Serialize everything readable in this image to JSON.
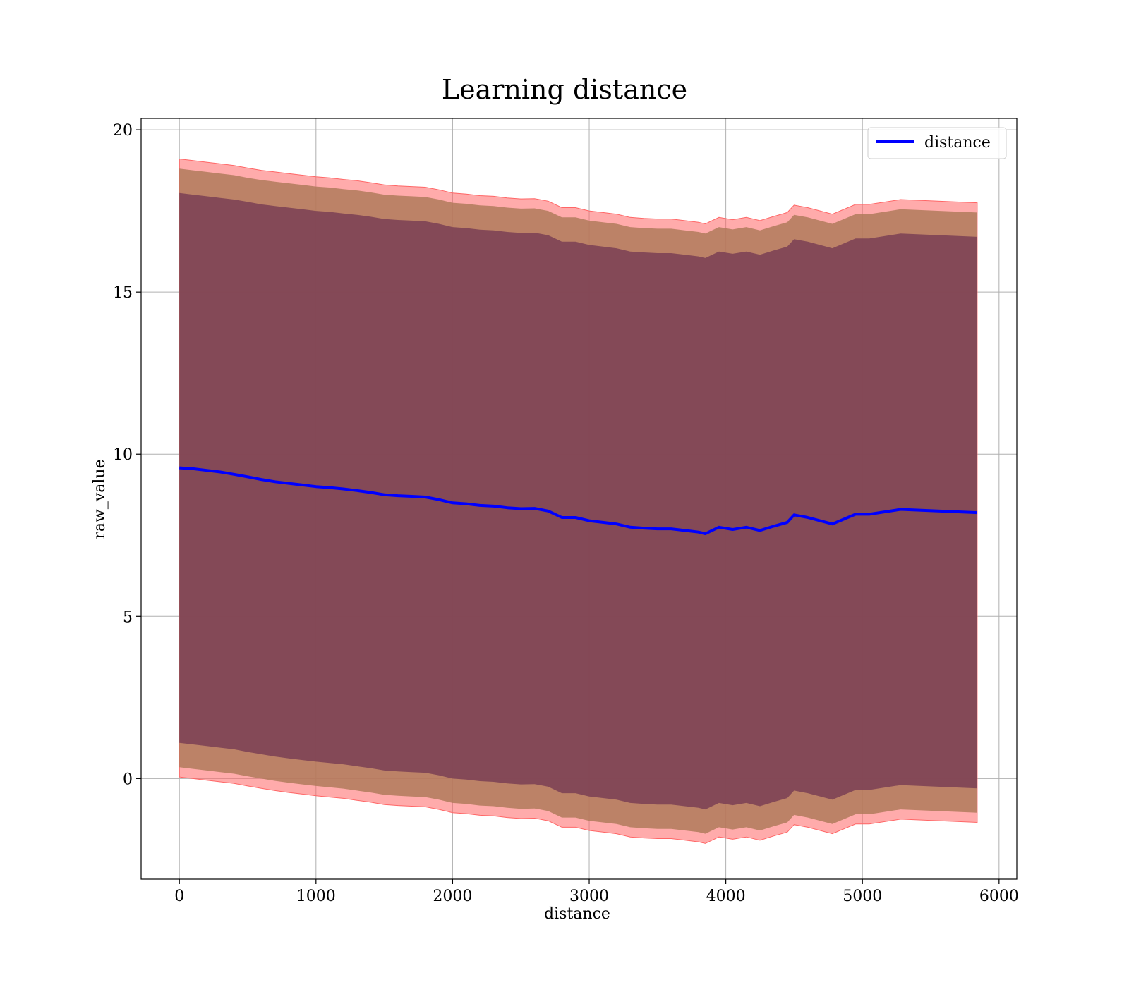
{
  "chart_data": {
    "type": "line",
    "title": "Learning distance",
    "xlabel": "distance",
    "ylabel": "raw_value",
    "xlim": [
      -280,
      6130
    ],
    "ylim": [
      -3.1,
      20.35
    ],
    "xticks": [
      0,
      1000,
      2000,
      3000,
      4000,
      5000,
      6000
    ],
    "yticks": [
      0,
      5,
      10,
      15,
      20
    ],
    "grid": true,
    "legend_position": "top-right",
    "colors": {
      "line": "#0000ff",
      "band_outer": "#ff6666",
      "band_middle": "#b07a5a",
      "band_inner": "#7a3f55",
      "grid": "#b0b0b0"
    },
    "series": [
      {
        "name": "distance",
        "x": [
          0,
          100,
          200,
          300,
          400,
          500,
          600,
          700,
          800,
          900,
          1000,
          1100,
          1200,
          1300,
          1400,
          1500,
          1600,
          1700,
          1800,
          1900,
          2000,
          2100,
          2200,
          2300,
          2400,
          2500,
          2600,
          2700,
          2800,
          2900,
          3000,
          3100,
          3200,
          3300,
          3400,
          3500,
          3600,
          3700,
          3800,
          3850,
          3950,
          4050,
          4150,
          4250,
          4350,
          4450,
          4500,
          4600,
          4780,
          4950,
          5050,
          5280,
          5840
        ],
        "y": [
          9.58,
          9.55,
          9.5,
          9.45,
          9.38,
          9.3,
          9.22,
          9.15,
          9.1,
          9.05,
          9.0,
          8.97,
          8.93,
          8.88,
          8.82,
          8.75,
          8.72,
          8.7,
          8.68,
          8.6,
          8.5,
          8.47,
          8.42,
          8.4,
          8.35,
          8.32,
          8.33,
          8.25,
          8.05,
          8.05,
          7.95,
          7.9,
          7.85,
          7.75,
          7.72,
          7.7,
          7.7,
          7.65,
          7.6,
          7.55,
          7.75,
          7.68,
          7.75,
          7.65,
          7.78,
          7.9,
          8.13,
          8.05,
          7.85,
          8.15,
          8.15,
          8.3,
          8.2
        ],
        "upper_inner": [
          18.05,
          18.0,
          17.95,
          17.9,
          17.85,
          17.78,
          17.7,
          17.65,
          17.6,
          17.55,
          17.5,
          17.47,
          17.42,
          17.38,
          17.32,
          17.25,
          17.22,
          17.2,
          17.18,
          17.1,
          17.0,
          16.97,
          16.92,
          16.9,
          16.85,
          16.82,
          16.83,
          16.75,
          16.55,
          16.55,
          16.45,
          16.4,
          16.35,
          16.25,
          16.22,
          16.2,
          16.2,
          16.15,
          16.1,
          16.05,
          16.25,
          16.18,
          16.25,
          16.15,
          16.28,
          16.4,
          16.63,
          16.55,
          16.35,
          16.65,
          16.65,
          16.8,
          16.7
        ],
        "lower_inner": [
          1.1,
          1.05,
          1.0,
          0.95,
          0.9,
          0.82,
          0.75,
          0.68,
          0.62,
          0.57,
          0.52,
          0.48,
          0.44,
          0.38,
          0.32,
          0.25,
          0.22,
          0.2,
          0.18,
          0.1,
          0.0,
          -0.03,
          -0.08,
          -0.1,
          -0.15,
          -0.18,
          -0.17,
          -0.25,
          -0.45,
          -0.45,
          -0.55,
          -0.6,
          -0.65,
          -0.75,
          -0.78,
          -0.8,
          -0.8,
          -0.85,
          -0.9,
          -0.95,
          -0.75,
          -0.82,
          -0.75,
          -0.85,
          -0.72,
          -0.6,
          -0.37,
          -0.45,
          -0.65,
          -0.35,
          -0.35,
          -0.2,
          -0.3
        ],
        "upper_middle": [
          18.8,
          18.75,
          18.7,
          18.65,
          18.6,
          18.52,
          18.45,
          18.4,
          18.35,
          18.3,
          18.25,
          18.22,
          18.17,
          18.13,
          18.07,
          18.0,
          17.97,
          17.95,
          17.93,
          17.85,
          17.75,
          17.72,
          17.67,
          17.65,
          17.6,
          17.57,
          17.58,
          17.5,
          17.3,
          17.3,
          17.2,
          17.15,
          17.1,
          17.0,
          16.97,
          16.95,
          16.95,
          16.9,
          16.85,
          16.8,
          17.0,
          16.93,
          17.0,
          16.9,
          17.03,
          17.15,
          17.38,
          17.3,
          17.1,
          17.4,
          17.4,
          17.55,
          17.45
        ],
        "lower_middle": [
          0.35,
          0.3,
          0.25,
          0.2,
          0.15,
          0.07,
          0.0,
          -0.07,
          -0.13,
          -0.18,
          -0.23,
          -0.27,
          -0.31,
          -0.37,
          -0.43,
          -0.5,
          -0.53,
          -0.55,
          -0.57,
          -0.65,
          -0.75,
          -0.78,
          -0.83,
          -0.85,
          -0.9,
          -0.93,
          -0.92,
          -1.0,
          -1.2,
          -1.2,
          -1.3,
          -1.35,
          -1.4,
          -1.5,
          -1.53,
          -1.55,
          -1.55,
          -1.6,
          -1.65,
          -1.7,
          -1.5,
          -1.57,
          -1.5,
          -1.6,
          -1.47,
          -1.35,
          -1.12,
          -1.2,
          -1.4,
          -1.1,
          -1.1,
          -0.95,
          -1.05
        ],
        "upper_outer": [
          19.1,
          19.05,
          19.0,
          18.95,
          18.9,
          18.82,
          18.75,
          18.7,
          18.65,
          18.6,
          18.55,
          18.52,
          18.47,
          18.43,
          18.37,
          18.3,
          18.27,
          18.25,
          18.23,
          18.15,
          18.05,
          18.02,
          17.97,
          17.95,
          17.9,
          17.87,
          17.88,
          17.8,
          17.6,
          17.6,
          17.5,
          17.45,
          17.4,
          17.3,
          17.27,
          17.25,
          17.25,
          17.2,
          17.15,
          17.1,
          17.3,
          17.23,
          17.3,
          17.2,
          17.33,
          17.45,
          17.68,
          17.6,
          17.4,
          17.7,
          17.7,
          17.85,
          17.75
        ],
        "lower_outer": [
          0.05,
          0.0,
          -0.05,
          -0.1,
          -0.15,
          -0.23,
          -0.3,
          -0.37,
          -0.43,
          -0.48,
          -0.53,
          -0.57,
          -0.61,
          -0.67,
          -0.73,
          -0.8,
          -0.83,
          -0.85,
          -0.87,
          -0.95,
          -1.05,
          -1.08,
          -1.13,
          -1.15,
          -1.2,
          -1.23,
          -1.22,
          -1.3,
          -1.5,
          -1.5,
          -1.6,
          -1.65,
          -1.7,
          -1.8,
          -1.83,
          -1.85,
          -1.85,
          -1.9,
          -1.95,
          -2.0,
          -1.8,
          -1.87,
          -1.8,
          -1.9,
          -1.77,
          -1.65,
          -1.42,
          -1.5,
          -1.7,
          -1.4,
          -1.4,
          -1.25,
          -1.35
        ]
      }
    ]
  }
}
